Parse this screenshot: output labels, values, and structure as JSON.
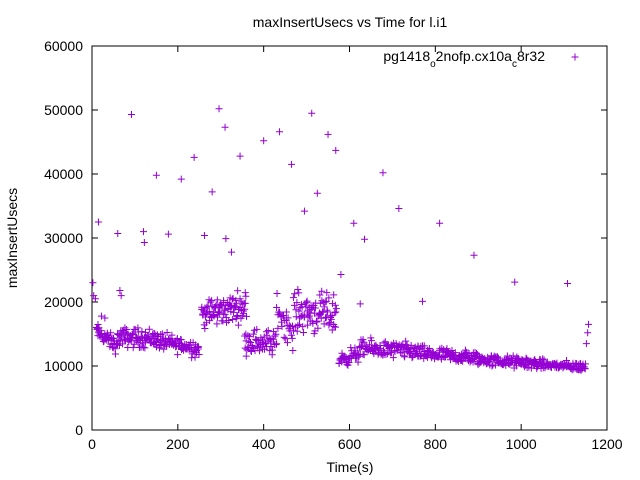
{
  "chart_data": {
    "type": "scatter",
    "title": "maxInsertUsecs vs Time for l.i1",
    "xlabel": "Time(s)",
    "ylabel": "maxInsertUsecs",
    "xlim": [
      0,
      1200
    ],
    "ylim": [
      0,
      60000
    ],
    "x_ticks": [
      0,
      200,
      400,
      600,
      800,
      1000,
      1200
    ],
    "y_ticks": [
      0,
      10000,
      20000,
      30000,
      40000,
      50000,
      60000
    ],
    "grid": false,
    "legend_position": "top-right",
    "series": [
      {
        "name": "pg1418_o2nofp.cx10a_c8r32",
        "legend": {
          "base": "pg1418",
          "sub1": "o",
          "mid": "2nofp.cx10a",
          "sub2": "c",
          "end": "8r32"
        },
        "color": "#9400d3",
        "marker": "plus",
        "outliers": [
          [
            2,
            23000
          ],
          [
            4,
            21000
          ],
          [
            8,
            20500
          ],
          [
            15,
            32500
          ],
          [
            22,
            17800
          ],
          [
            30,
            17500
          ],
          [
            60,
            30700
          ],
          [
            65,
            21800
          ],
          [
            68,
            21000
          ],
          [
            92,
            49300
          ],
          [
            120,
            31000
          ],
          [
            122,
            29300
          ],
          [
            150,
            39800
          ],
          [
            178,
            30600
          ],
          [
            208,
            39200
          ],
          [
            238,
            42600
          ],
          [
            262,
            30400
          ],
          [
            280,
            37200
          ],
          [
            296,
            50200
          ],
          [
            310,
            47300
          ],
          [
            312,
            29900
          ],
          [
            325,
            27800
          ],
          [
            345,
            42800
          ],
          [
            400,
            45200
          ],
          [
            437,
            46600
          ],
          [
            465,
            41500
          ],
          [
            495,
            34200
          ],
          [
            512,
            49500
          ],
          [
            525,
            37000
          ],
          [
            550,
            46200
          ],
          [
            568,
            43700
          ],
          [
            580,
            24300
          ],
          [
            610,
            32300
          ],
          [
            625,
            19700
          ],
          [
            635,
            29800
          ],
          [
            678,
            40200
          ],
          [
            715,
            34600
          ],
          [
            770,
            20100
          ],
          [
            810,
            32300
          ],
          [
            890,
            27300
          ],
          [
            985,
            23100
          ],
          [
            1108,
            22900
          ],
          [
            1157,
            16500
          ],
          [
            1155,
            15200
          ],
          [
            1152,
            13500
          ]
        ],
        "segments": [
          {
            "x0": 10,
            "x1": 60,
            "y0": 15500,
            "y1": 13000,
            "spread": 1200,
            "n": 45
          },
          {
            "x0": 60,
            "x1": 150,
            "y0": 14500,
            "y1": 14300,
            "spread": 1500,
            "n": 80
          },
          {
            "x0": 150,
            "x1": 250,
            "y0": 14000,
            "y1": 12700,
            "spread": 1300,
            "n": 85
          },
          {
            "x0": 255,
            "x1": 360,
            "y0": 18000,
            "y1": 19500,
            "spread": 2200,
            "n": 95
          },
          {
            "x0": 355,
            "x1": 430,
            "y0": 14000,
            "y1": 13500,
            "spread": 2000,
            "n": 60
          },
          {
            "x0": 430,
            "x1": 470,
            "y0": 19000,
            "y1": 15000,
            "spread": 2500,
            "n": 30
          },
          {
            "x0": 470,
            "x1": 570,
            "y0": 18500,
            "y1": 18000,
            "spread": 3000,
            "n": 90
          },
          {
            "x0": 575,
            "x1": 625,
            "y0": 11000,
            "y1": 12000,
            "spread": 1200,
            "n": 40
          },
          {
            "x0": 625,
            "x1": 760,
            "y0": 12800,
            "y1": 12300,
            "spread": 1300,
            "n": 110
          },
          {
            "x0": 760,
            "x1": 900,
            "y0": 12000,
            "y1": 11200,
            "spread": 1100,
            "n": 115
          },
          {
            "x0": 900,
            "x1": 1050,
            "y0": 11000,
            "y1": 10300,
            "spread": 900,
            "n": 120
          },
          {
            "x0": 1050,
            "x1": 1150,
            "y0": 10200,
            "y1": 9800,
            "spread": 700,
            "n": 80
          }
        ]
      }
    ]
  }
}
